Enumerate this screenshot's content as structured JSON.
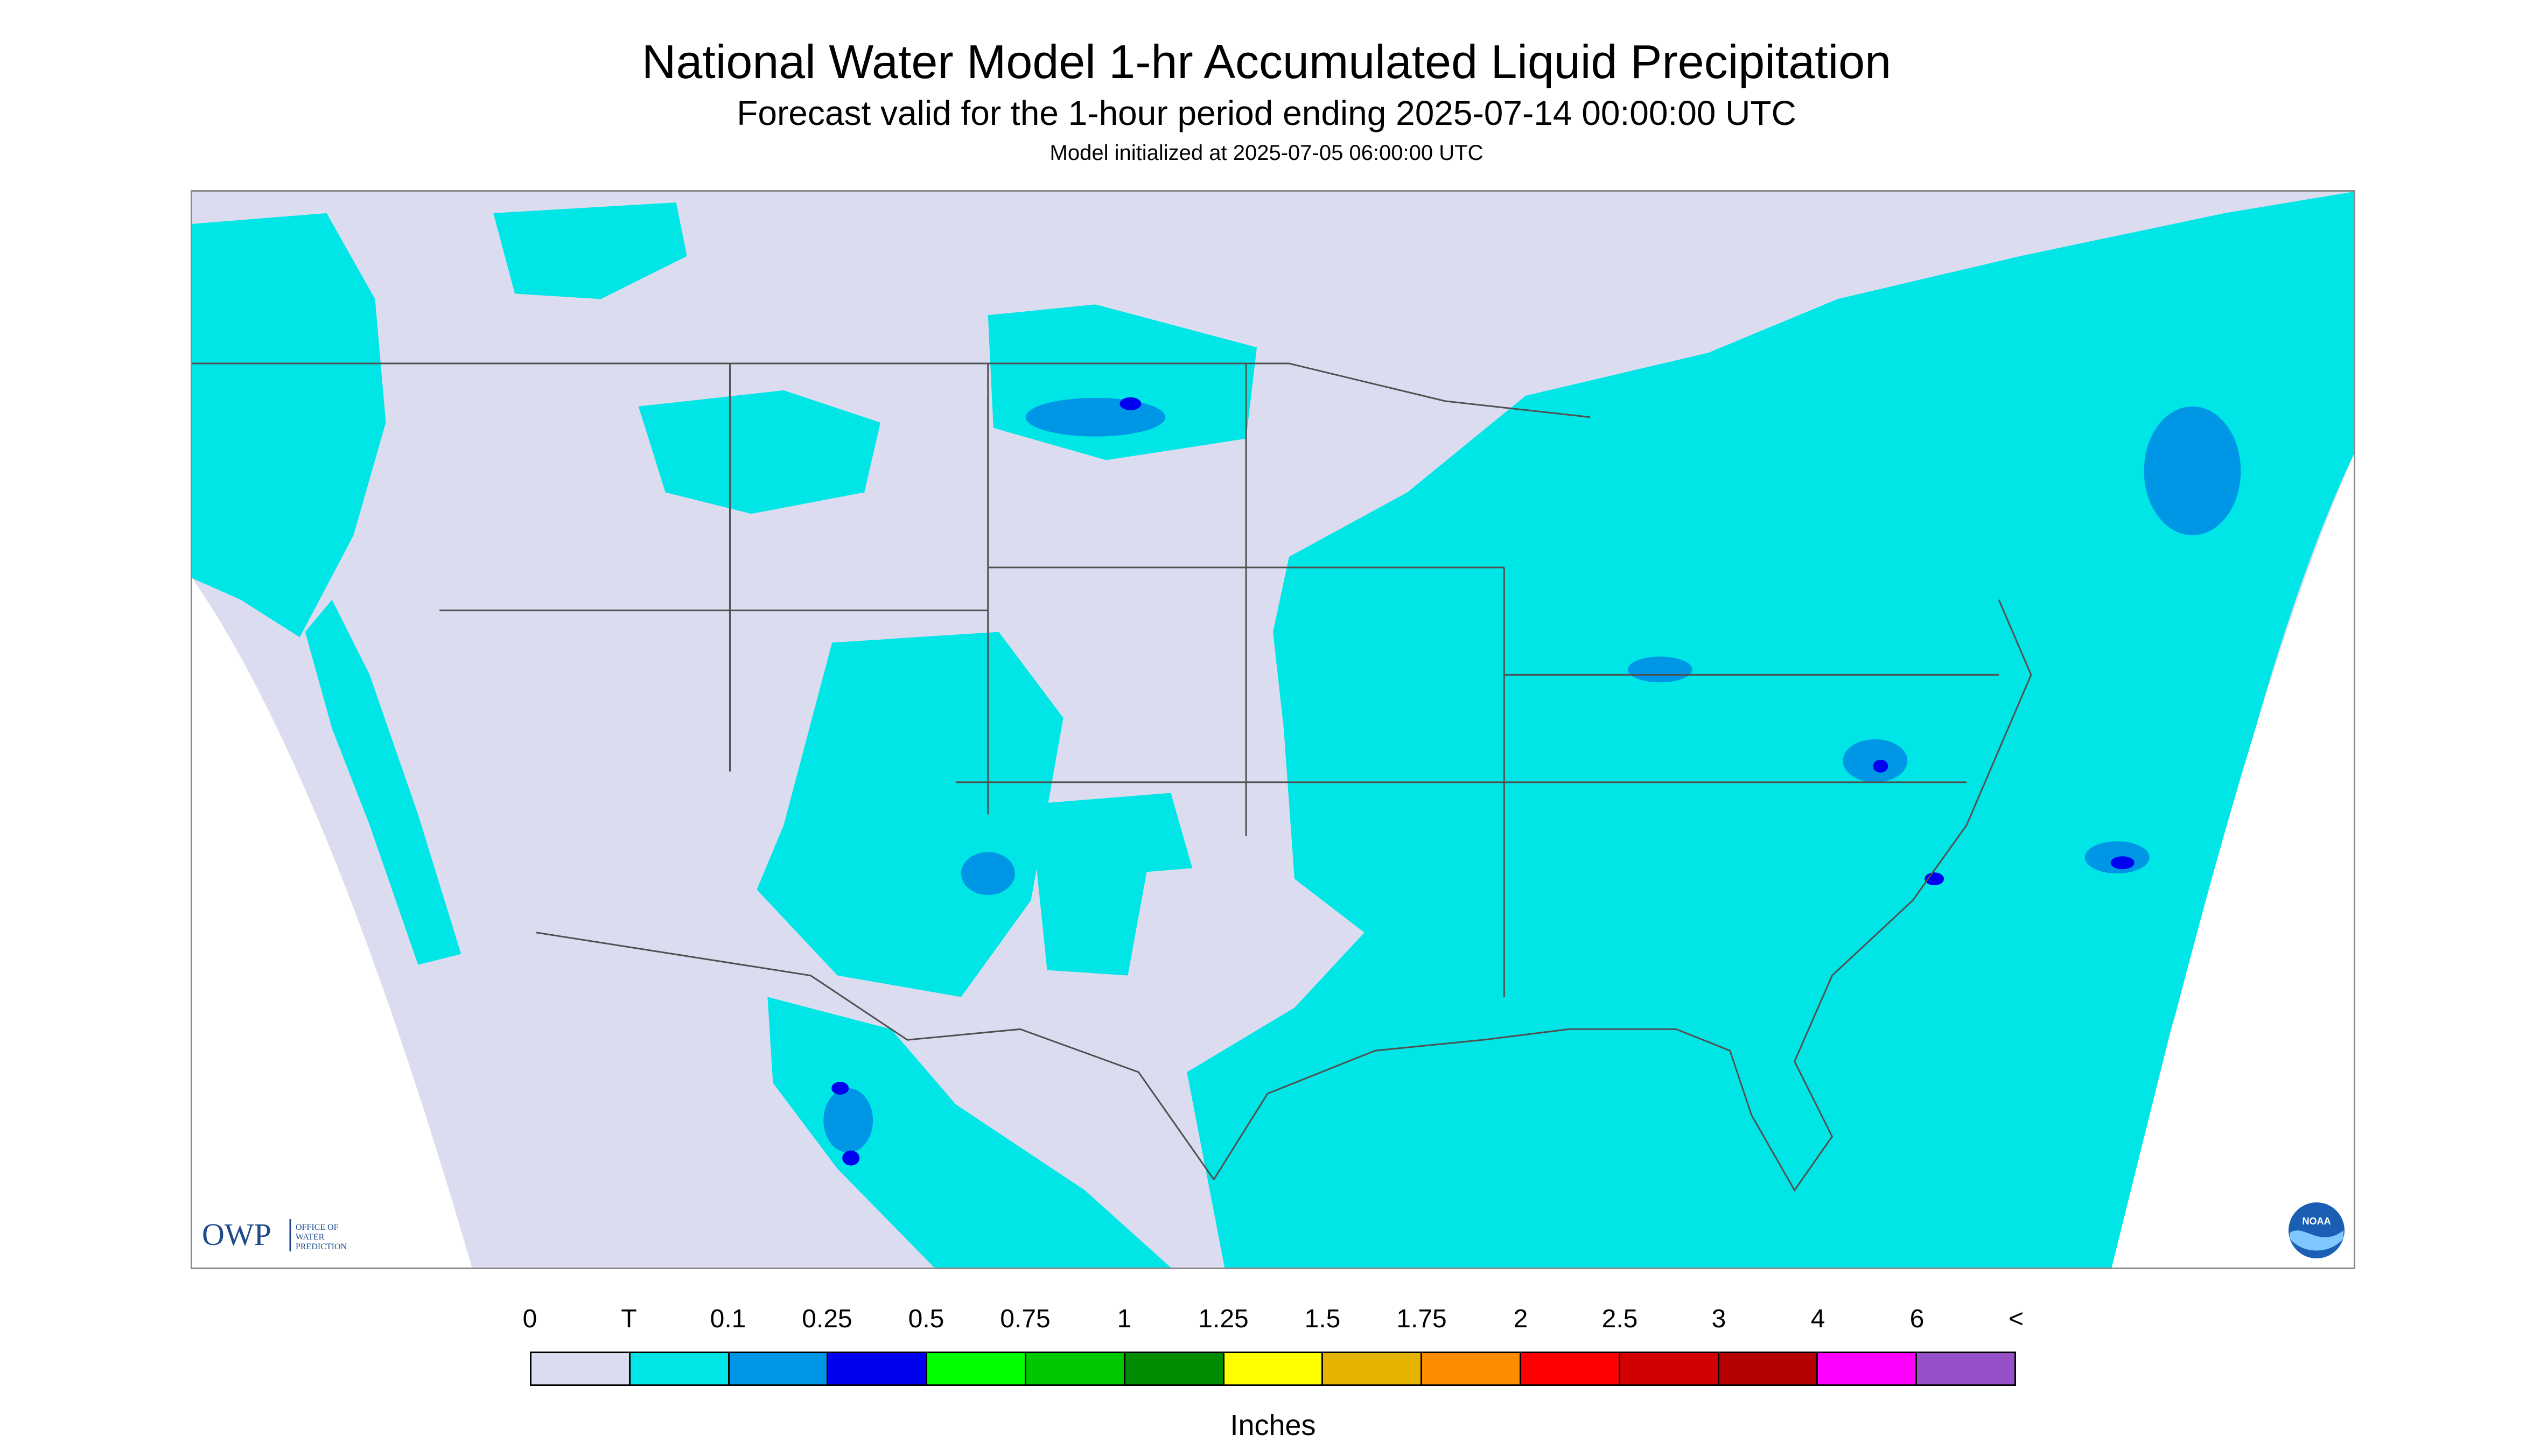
{
  "title": "National Water Model 1-hr Accumulated Liquid Precipitation",
  "subtitle": "Forecast valid for the 1-hour period ending 2025-07-14 00:00:00 UTC",
  "init_text": "Model initialized at 2025-07-05 06:00:00 UTC",
  "logos": {
    "owp_mark": "OWP",
    "owp_text": [
      "OFFICE OF",
      "WATER",
      "PREDICTION"
    ],
    "noaa_text": "NOAA"
  },
  "legend": {
    "tick_labels": [
      "0",
      "T",
      "0.1",
      "0.25",
      "0.5",
      "0.75",
      "1",
      "1.25",
      "1.5",
      "1.75",
      "2",
      "2.5",
      "3",
      "4",
      "6",
      "<"
    ],
    "colors": [
      "#dcdcf0",
      "#00e6e6",
      "#0096e6",
      "#0000f0",
      "#00ff00",
      "#00c800",
      "#008c00",
      "#ffff00",
      "#e6b400",
      "#ff8c00",
      "#ff0000",
      "#d20000",
      "#b40000",
      "#ff00ff",
      "#9650c8"
    ],
    "units": "Inches"
  },
  "map_colors": {
    "no_precip": "#dcdcf0",
    "trace": "#00e6e6",
    "light": "#0096e6",
    "moderate": "#0000f0",
    "outside_domain": "#ffffff",
    "boundary": "#505050"
  }
}
